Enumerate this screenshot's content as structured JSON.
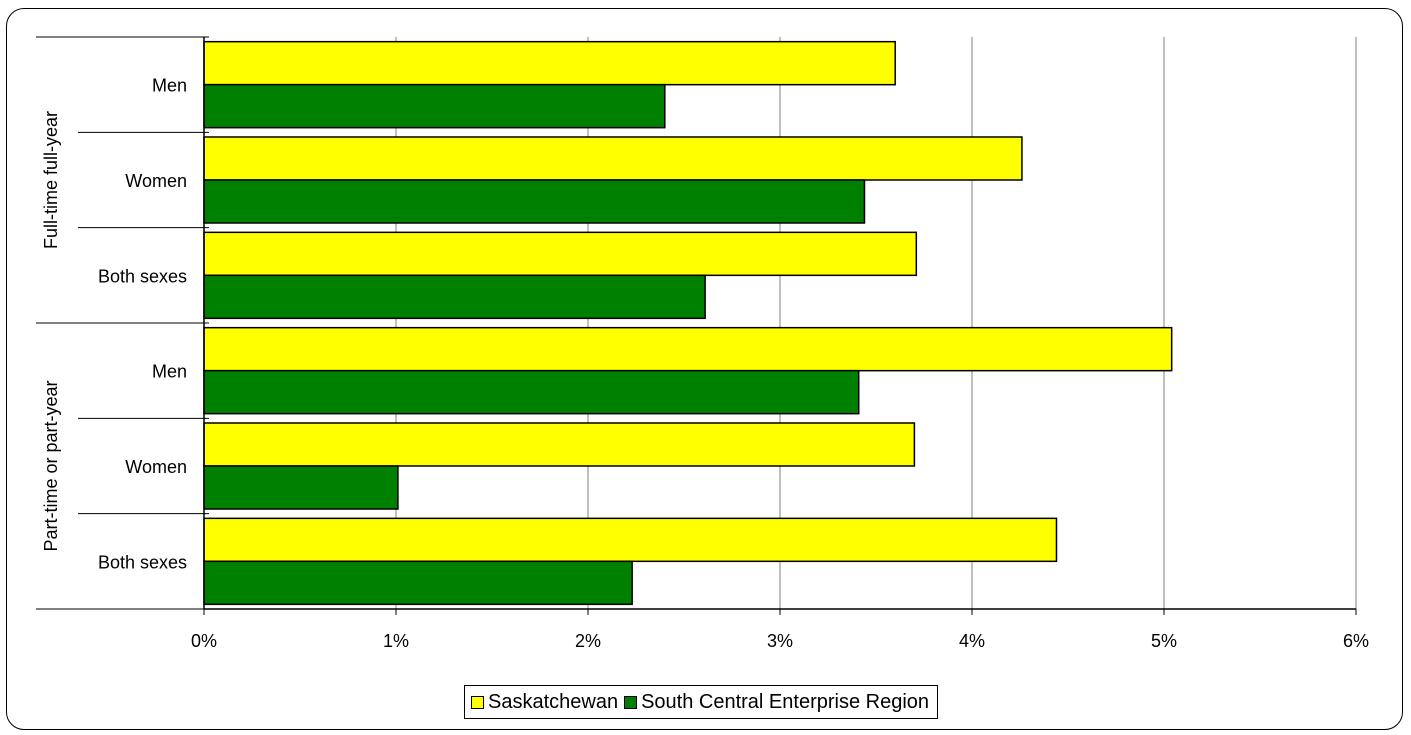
{
  "chart_data": {
    "type": "bar",
    "orientation": "horizontal",
    "title": "",
    "groups": [
      {
        "label": "Full-time full-year",
        "categories": [
          "Men",
          "Women",
          "Both sexes"
        ]
      },
      {
        "label": "Part-time or part-year",
        "categories": [
          "Men",
          "Women",
          "Both sexes"
        ]
      }
    ],
    "series": [
      {
        "name": "Saskatchewan",
        "color": "#ffff00",
        "values": [
          3.6,
          4.26,
          3.71,
          5.04,
          3.7,
          4.44
        ]
      },
      {
        "name": "South Central Enterprise Region",
        "color": "#008000",
        "values": [
          2.4,
          3.44,
          2.61,
          3.41,
          1.01,
          2.23
        ]
      }
    ],
    "x_ticks": [
      "0%",
      "1%",
      "2%",
      "3%",
      "4%",
      "5%",
      "6%"
    ],
    "xlim": [
      0,
      6
    ],
    "x_unit": "%",
    "grid": "vertical",
    "legend_position": "bottom"
  }
}
